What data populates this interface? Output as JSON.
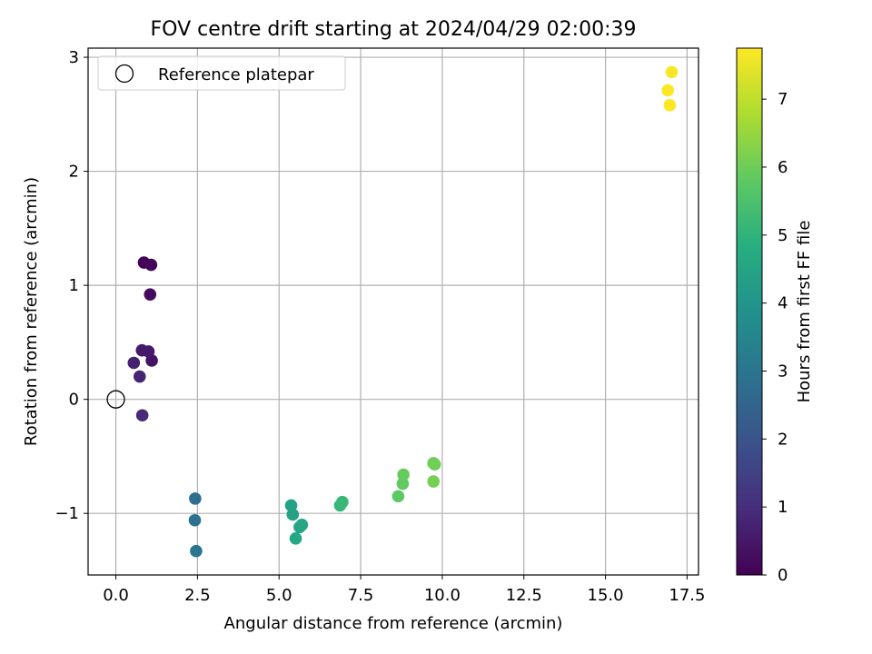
{
  "chart_data": {
    "type": "scatter",
    "title": "FOV centre drift starting at 2024/04/29 02:00:39",
    "xlabel": "Angular distance from reference (arcmin)",
    "ylabel": "Rotation from reference (arcmin)",
    "xlim": [
      -0.85,
      17.85
    ],
    "ylim": [
      -1.54,
      3.08
    ],
    "xticks": [
      0.0,
      2.5,
      5.0,
      7.5,
      10.0,
      12.5,
      15.0,
      17.5
    ],
    "xtick_labels": [
      "0.0",
      "2.5",
      "5.0",
      "7.5",
      "10.0",
      "12.5",
      "15.0",
      "17.5"
    ],
    "yticks": [
      -1,
      0,
      1,
      2,
      3
    ],
    "ytick_labels": [
      "−1",
      "0",
      "1",
      "2",
      "3"
    ],
    "grid": true,
    "legend_position": "top-left",
    "legend": [
      {
        "label": "Reference platepar",
        "marker": "hollow-circle"
      }
    ],
    "reference_point": {
      "x": 0,
      "y": 0
    },
    "colormap": "viridis",
    "colorbar": {
      "label": "Hours from first FF file",
      "range": [
        0,
        7.75
      ],
      "ticks": [
        0,
        1,
        2,
        3,
        4,
        5,
        6,
        7
      ],
      "tick_labels": [
        "0",
        "1",
        "2",
        "3",
        "4",
        "5",
        "6",
        "7"
      ]
    },
    "points": [
      {
        "x": 0.86,
        "y": 1.2,
        "hours": 0.05
      },
      {
        "x": 1.08,
        "y": 1.18,
        "hours": 0.1
      },
      {
        "x": 1.05,
        "y": 0.92,
        "hours": 0.22
      },
      {
        "x": 1.1,
        "y": 0.34,
        "hours": 0.4
      },
      {
        "x": 0.8,
        "y": 0.43,
        "hours": 0.5
      },
      {
        "x": 1.0,
        "y": 0.42,
        "hours": 0.55
      },
      {
        "x": 0.55,
        "y": 0.32,
        "hours": 0.7
      },
      {
        "x": 0.73,
        "y": 0.2,
        "hours": 0.8
      },
      {
        "x": 0.81,
        "y": -0.14,
        "hours": 0.9
      },
      {
        "x": 2.43,
        "y": -0.87,
        "hours": 2.8
      },
      {
        "x": 2.42,
        "y": -1.06,
        "hours": 2.9
      },
      {
        "x": 2.46,
        "y": -1.33,
        "hours": 3.0
      },
      {
        "x": 5.37,
        "y": -0.93,
        "hours": 4.4
      },
      {
        "x": 5.42,
        "y": -1.01,
        "hours": 4.45
      },
      {
        "x": 5.7,
        "y": -1.1,
        "hours": 4.5
      },
      {
        "x": 5.63,
        "y": -1.12,
        "hours": 4.55
      },
      {
        "x": 5.51,
        "y": -1.22,
        "hours": 4.6
      },
      {
        "x": 6.87,
        "y": -0.93,
        "hours": 5.1
      },
      {
        "x": 6.94,
        "y": -0.9,
        "hours": 5.15
      },
      {
        "x": 8.65,
        "y": -0.85,
        "hours": 5.8
      },
      {
        "x": 8.79,
        "y": -0.74,
        "hours": 5.85
      },
      {
        "x": 8.81,
        "y": -0.66,
        "hours": 5.9
      },
      {
        "x": 9.73,
        "y": -0.56,
        "hours": 6.0
      },
      {
        "x": 9.77,
        "y": -0.57,
        "hours": 6.05
      },
      {
        "x": 9.73,
        "y": -0.72,
        "hours": 6.1
      },
      {
        "x": 17.03,
        "y": 2.87,
        "hours": 7.7
      },
      {
        "x": 16.91,
        "y": 2.71,
        "hours": 7.72
      },
      {
        "x": 16.97,
        "y": 2.58,
        "hours": 7.75
      }
    ]
  }
}
